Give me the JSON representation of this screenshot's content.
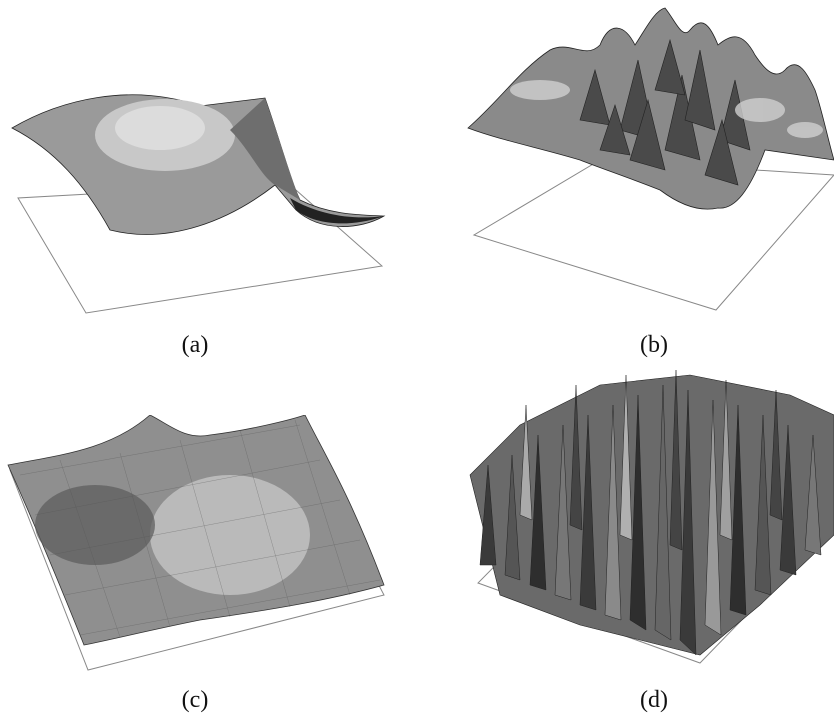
{
  "panels": [
    {
      "id": "a",
      "label": "(a)",
      "kind": "smooth-saddle"
    },
    {
      "id": "b",
      "label": "(b)",
      "kind": "oscillating-peaks"
    },
    {
      "id": "c",
      "label": "(c)",
      "kind": "noisy-triangulated-mesh"
    },
    {
      "id": "d",
      "label": "(d)",
      "kind": "random-spikes"
    }
  ],
  "colors": {
    "background": "#ffffff",
    "plane_outline": "#888888",
    "surface_light": "#d8d8d8",
    "surface_mid": "#9a9a9a",
    "surface_dark": "#3a3a3a",
    "surface_edge": "#222222"
  }
}
